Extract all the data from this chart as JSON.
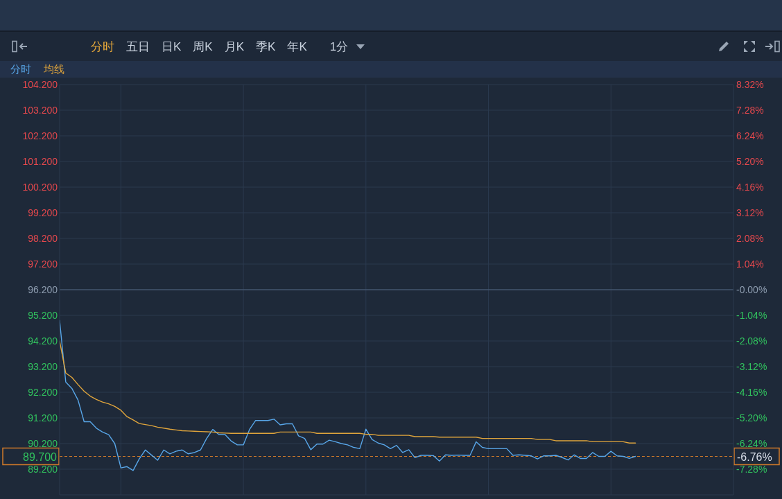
{
  "chart_data": {
    "type": "line",
    "annotations": [
      "分时",
      "五日",
      "日K",
      "周K",
      "月K",
      "季K",
      "年K",
      "1分",
      "-6.76%"
    ],
    "categories": [
      null,
      null,
      null,
      null,
      null,
      null,
      null,
      null,
      null,
      null,
      null,
      null,
      null,
      null,
      null,
      null,
      null,
      null,
      null,
      null,
      null,
      null,
      null,
      null,
      null,
      null,
      null,
      null,
      null,
      null,
      null,
      null,
      null,
      null,
      null,
      null,
      null,
      null,
      null,
      null,
      null,
      null,
      null,
      null,
      null,
      null,
      null,
      null,
      null,
      null,
      null,
      null,
      null,
      null,
      null,
      null,
      null,
      null,
      null,
      null,
      null,
      null,
      null,
      null,
      null,
      null,
      null,
      null,
      null,
      null,
      null,
      null,
      null,
      null,
      null,
      null,
      null,
      null,
      null,
      null,
      null,
      null,
      null,
      null,
      null,
      null,
      null,
      null,
      null,
      null,
      null,
      null,
      null,
      null,
      null,
      null,
      null,
      null,
      null,
      null,
      null,
      null,
      null,
      null,
      null,
      null,
      null,
      null,
      null,
      null,
      null
    ],
    "series": [
      {
        "name": "分时",
        "color": "#58a6e8",
        "values": [
          95.0,
          92.6,
          92.35,
          91.9,
          91.05,
          91.05,
          90.8,
          90.65,
          90.55,
          90.2,
          89.25,
          89.3,
          89.15,
          89.6,
          89.95,
          89.75,
          89.55,
          89.95,
          89.8,
          89.9,
          89.95,
          89.8,
          89.85,
          89.95,
          90.4,
          90.75,
          90.55,
          90.55,
          90.3,
          90.15,
          90.15,
          90.75,
          91.1,
          91.1,
          91.1,
          91.15,
          90.93,
          90.97,
          90.97,
          90.5,
          90.4,
          89.96,
          90.18,
          90.18,
          90.33,
          90.27,
          90.2,
          90.15,
          90.05,
          90.0,
          90.76,
          90.36,
          90.22,
          90.15,
          90.0,
          90.13,
          89.85,
          89.96,
          89.65,
          89.74,
          89.74,
          89.73,
          89.52,
          89.76,
          89.74,
          89.75,
          89.74,
          89.74,
          90.27,
          90.05,
          90.0,
          90.0,
          90.0,
          90.0,
          89.74,
          89.76,
          89.74,
          89.72,
          89.6,
          89.72,
          89.72,
          89.74,
          89.66,
          89.56,
          89.76,
          89.62,
          89.62,
          89.85,
          89.7,
          89.7,
          89.9,
          89.72,
          89.7,
          89.62,
          89.7,
          null,
          null,
          null,
          null,
          null,
          null,
          null,
          null,
          null,
          null,
          null,
          null,
          null,
          null,
          null,
          null
        ]
      },
      {
        "name": "均线",
        "color": "#e0a53c",
        "values": [
          94.2,
          92.95,
          92.78,
          92.5,
          92.24,
          92.05,
          91.92,
          91.82,
          91.75,
          91.65,
          91.5,
          91.25,
          91.12,
          90.98,
          90.94,
          90.9,
          90.84,
          90.8,
          90.76,
          90.73,
          90.7,
          90.69,
          90.68,
          90.67,
          90.66,
          90.65,
          90.62,
          90.61,
          90.6,
          90.6,
          90.6,
          90.6,
          90.6,
          90.6,
          90.6,
          90.6,
          90.65,
          90.65,
          90.65,
          90.65,
          90.65,
          90.65,
          90.6,
          90.6,
          90.6,
          90.6,
          90.6,
          90.6,
          90.6,
          90.6,
          90.56,
          90.56,
          90.52,
          90.52,
          90.52,
          90.52,
          90.52,
          90.52,
          90.47,
          90.47,
          90.47,
          90.47,
          90.45,
          90.45,
          90.45,
          90.45,
          90.45,
          90.45,
          90.45,
          90.4,
          90.4,
          90.4,
          90.4,
          90.4,
          90.4,
          90.4,
          90.4,
          90.4,
          90.36,
          90.36,
          90.36,
          90.31,
          90.31,
          90.31,
          90.31,
          90.31,
          90.31,
          90.27,
          90.27,
          90.27,
          90.27,
          90.27,
          90.27,
          90.22,
          90.22,
          null,
          null,
          null,
          null,
          null,
          null,
          null,
          null,
          null,
          null,
          null,
          null,
          null,
          null,
          null,
          null
        ]
      }
    ],
    "ylim": [
      88.2,
      104.2
    ],
    "yticks": [
      {
        "value": 89.2,
        "label": "89.200"
      },
      {
        "value": 90.2,
        "label": "90.200"
      },
      {
        "value": 91.2,
        "label": "91.200"
      },
      {
        "value": 92.2,
        "label": "92.200"
      },
      {
        "value": 93.2,
        "label": "93.200"
      },
      {
        "value": 94.2,
        "label": "94.200"
      },
      {
        "value": 95.2,
        "label": "95.200"
      },
      {
        "value": 96.2,
        "label": "96.200"
      },
      {
        "value": 97.2,
        "label": "97.200"
      },
      {
        "value": 98.2,
        "label": "98.200"
      },
      {
        "value": 99.2,
        "label": "99.200"
      },
      {
        "value": 100.2,
        "label": "100.200"
      },
      {
        "value": 101.2,
        "label": "101.200"
      },
      {
        "value": 102.2,
        "label": "102.200"
      },
      {
        "value": 103.2,
        "label": "103.200"
      },
      {
        "value": 104.2,
        "label": "104.200"
      }
    ],
    "y2lim": [
      -8.32,
      8.32
    ],
    "y2ticks": [
      {
        "value": -7.28,
        "label": "-7.28%"
      },
      {
        "value": -6.24,
        "label": "-6.24%"
      },
      {
        "value": -5.2,
        "label": "-5.20%"
      },
      {
        "value": -4.16,
        "label": "-4.16%"
      },
      {
        "value": -3.12,
        "label": "-3.12%"
      },
      {
        "value": -2.08,
        "label": "-2.08%"
      },
      {
        "value": -1.04,
        "label": "-1.04%"
      },
      {
        "value": 0,
        "label": "-0.00%"
      },
      {
        "value": 1.04,
        "label": "1.04%"
      },
      {
        "value": 2.08,
        "label": "2.08%"
      },
      {
        "value": 3.12,
        "label": "3.12%"
      },
      {
        "value": 4.16,
        "label": "4.16%"
      },
      {
        "value": 5.2,
        "label": "5.20%"
      },
      {
        "value": 6.24,
        "label": "6.24%"
      },
      {
        "value": 7.28,
        "label": "7.28%"
      },
      {
        "value": 8.32,
        "label": "8.32%"
      }
    ],
    "ref_lines": [
      {
        "axis": "y",
        "value": 96.2,
        "color": "#506580",
        "line_style": "solid"
      },
      {
        "axis": "y",
        "value": 89.7,
        "label": "89.700",
        "color": "#d07a2a",
        "line_style": "dashed"
      }
    ],
    "grid": true,
    "legend": "top left"
  }
}
